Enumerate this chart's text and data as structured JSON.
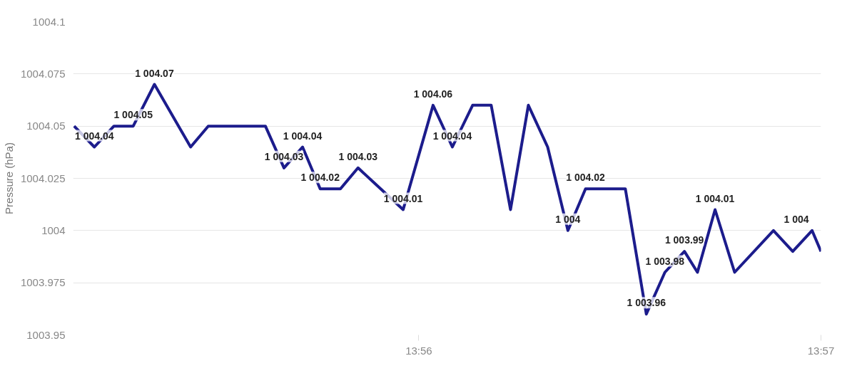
{
  "chart_data": {
    "type": "line",
    "ylabel": "Pressure (hPa)",
    "x": [
      13.91904,
      13.91988,
      13.92069,
      13.92149,
      13.92237,
      13.92387,
      13.9246,
      13.92697,
      13.92774,
      13.92851,
      13.92924,
      13.93008,
      13.93081,
      13.93268,
      13.93392,
      13.93472,
      13.93556,
      13.93633,
      13.93713,
      13.93787,
      13.93867,
      13.93951,
      13.94024,
      13.94189,
      13.94276,
      13.94353,
      13.94434,
      13.94488,
      13.94561,
      13.94642,
      13.94803,
      13.94883,
      13.94963,
      13.95
    ],
    "series": [
      {
        "color": "#1c1c8c",
        "values": [
          1004.05,
          1004.04,
          1004.05,
          1004.05,
          1004.07,
          1004.04,
          1004.05,
          1004.05,
          1004.03,
          1004.04,
          1004.02,
          1004.02,
          1004.03,
          1004.01,
          1004.06,
          1004.04,
          1004.06,
          1004.06,
          1004.01,
          1004.06,
          1004.04,
          1004.0,
          1004.02,
          1004.02,
          1003.96,
          1003.98,
          1003.99,
          1003.98,
          1004.01,
          1003.98,
          1004.0,
          1003.99,
          1004.0,
          1003.99
        ],
        "value_labels": [
          null,
          "1 004.04",
          null,
          "1 004.05",
          "1 004.07",
          null,
          null,
          null,
          "1 004.03",
          "1 004.04",
          "1 004.02",
          null,
          "1 004.03",
          "1 004.01",
          "1 004.06",
          "1 004.04",
          null,
          null,
          null,
          null,
          null,
          "1 004",
          "1 004.02",
          null,
          "1 003.96",
          "1 003.98",
          "1 003.99",
          null,
          "1 004.01",
          null,
          null,
          null,
          "1 004",
          null
        ]
      }
    ],
    "xlim": [
      13.919,
      13.95
    ],
    "xticks": [
      {
        "value": 13.93333,
        "label": "13:56"
      },
      {
        "value": 13.95,
        "label": "13:57"
      }
    ],
    "ylim": [
      1003.95,
      1004.1
    ],
    "yticks": [
      1003.95,
      1003.975,
      1004,
      1004.025,
      1004.05,
      1004.075,
      1004.1
    ],
    "grid": "y",
    "marker": "none",
    "line_style": "solid"
  }
}
